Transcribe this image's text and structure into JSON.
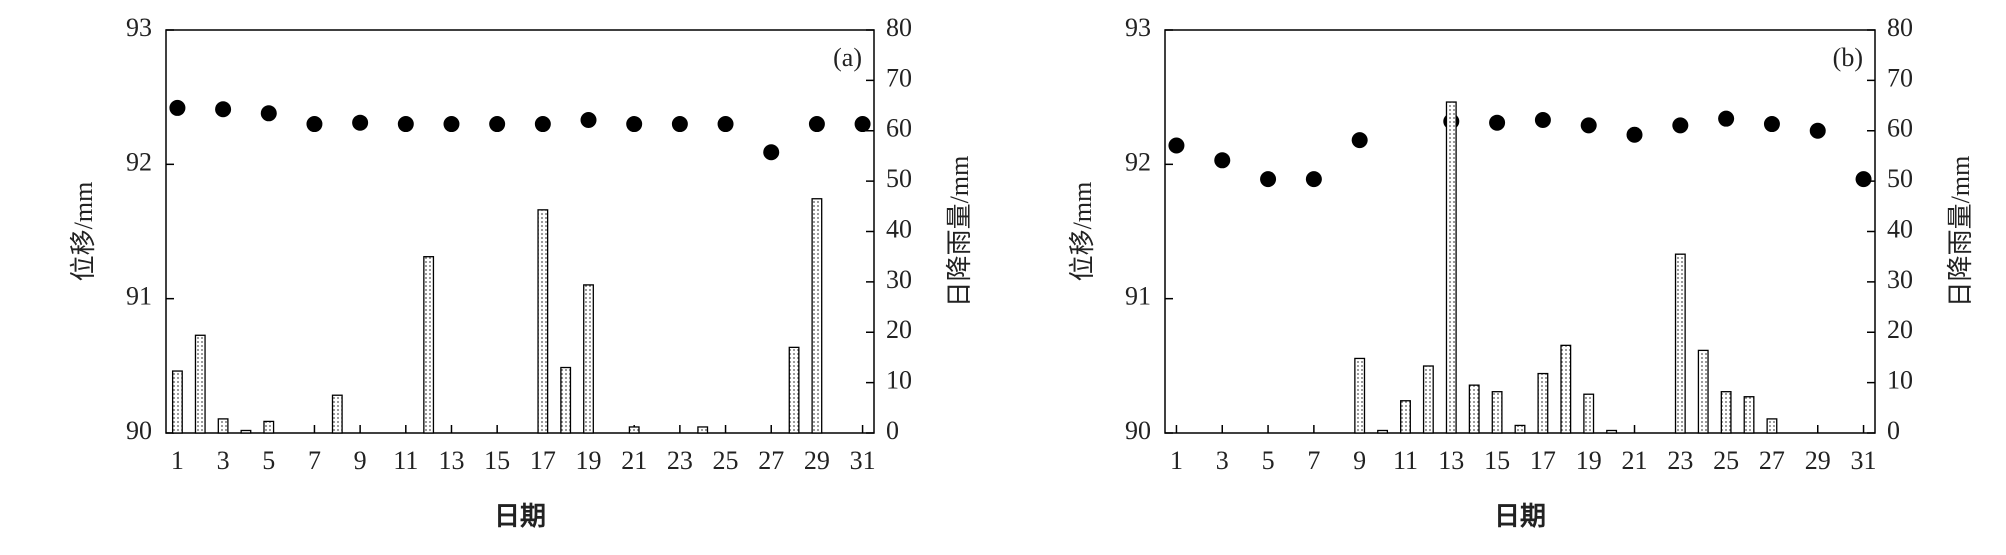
{
  "chart_data": [
    {
      "type": "bar",
      "annotation": "(a)",
      "xlabel": "日期",
      "ylabel": "位移/mm",
      "y2label": "日降雨量/mm",
      "xlim": [
        0.5,
        31.5
      ],
      "xticks": [
        1,
        3,
        5,
        7,
        9,
        11,
        13,
        15,
        17,
        19,
        21,
        23,
        25,
        27,
        29,
        31
      ],
      "ylim": [
        90,
        93
      ],
      "yticks": [
        90,
        91,
        92,
        93
      ],
      "y2lim": [
        0,
        80
      ],
      "y2ticks": [
        0,
        10,
        20,
        30,
        40,
        50,
        60,
        70,
        80
      ],
      "series": [
        {
          "type": "scatter",
          "axis": "y",
          "color": "#000000",
          "x": [
            1,
            3,
            5,
            7,
            9,
            11,
            13,
            15,
            17,
            19,
            21,
            23,
            25,
            27,
            29,
            31
          ],
          "values": [
            92.42,
            92.41,
            92.38,
            92.3,
            92.31,
            92.3,
            92.3,
            92.3,
            92.3,
            92.33,
            92.3,
            92.3,
            92.3,
            92.09,
            92.3,
            92.3
          ]
        },
        {
          "type": "bar",
          "axis": "y2",
          "color": "#555555",
          "x": [
            1,
            2,
            3,
            4,
            5,
            6,
            7,
            8,
            9,
            10,
            11,
            12,
            13,
            14,
            15,
            16,
            17,
            18,
            19,
            20,
            21,
            22,
            23,
            24,
            25,
            26,
            27,
            28,
            29,
            30,
            31
          ],
          "values": [
            12.3,
            19.4,
            2.8,
            0.5,
            2.3,
            0,
            0,
            7.5,
            0,
            0,
            0,
            35,
            0,
            0,
            0,
            0,
            44.3,
            13,
            29.4,
            0,
            1.2,
            0,
            0,
            1.2,
            0,
            0,
            0,
            17,
            46.5,
            0,
            0
          ]
        }
      ]
    },
    {
      "type": "bar",
      "annotation": "(b)",
      "xlabel": "日期",
      "ylabel": "位移/mm",
      "y2label": "日降雨量/mm",
      "xlim": [
        0.5,
        31.5
      ],
      "xticks": [
        1,
        3,
        5,
        7,
        9,
        11,
        13,
        15,
        17,
        19,
        21,
        23,
        25,
        27,
        29,
        31
      ],
      "ylim": [
        90,
        93
      ],
      "yticks": [
        90,
        91,
        92,
        93
      ],
      "y2lim": [
        0,
        80
      ],
      "y2ticks": [
        0,
        10,
        20,
        30,
        40,
        50,
        60,
        70,
        80
      ],
      "series": [
        {
          "type": "scatter",
          "axis": "y",
          "color": "#000000",
          "x": [
            1,
            3,
            5,
            7,
            9,
            13,
            15,
            17,
            19,
            21,
            23,
            25,
            27,
            29,
            31
          ],
          "values": [
            92.14,
            92.03,
            91.89,
            91.89,
            92.18,
            92.32,
            92.31,
            92.33,
            92.29,
            92.22,
            92.29,
            92.34,
            92.3,
            92.25,
            91.89
          ]
        },
        {
          "type": "bar",
          "axis": "y2",
          "color": "#555555",
          "x": [
            1,
            2,
            3,
            4,
            5,
            6,
            7,
            8,
            9,
            10,
            11,
            12,
            13,
            14,
            15,
            16,
            17,
            18,
            19,
            20,
            21,
            22,
            23,
            24,
            25,
            26,
            27,
            28,
            29,
            30,
            31
          ],
          "values": [
            0,
            0,
            0,
            0,
            0,
            0,
            0,
            0,
            14.8,
            0.5,
            6.4,
            13.3,
            65.7,
            9.5,
            8.2,
            1.5,
            11.8,
            17.4,
            7.7,
            0.5,
            0,
            0,
            35.5,
            16.4,
            8.2,
            7.2,
            2.8,
            0,
            0,
            0,
            0
          ]
        }
      ]
    }
  ]
}
